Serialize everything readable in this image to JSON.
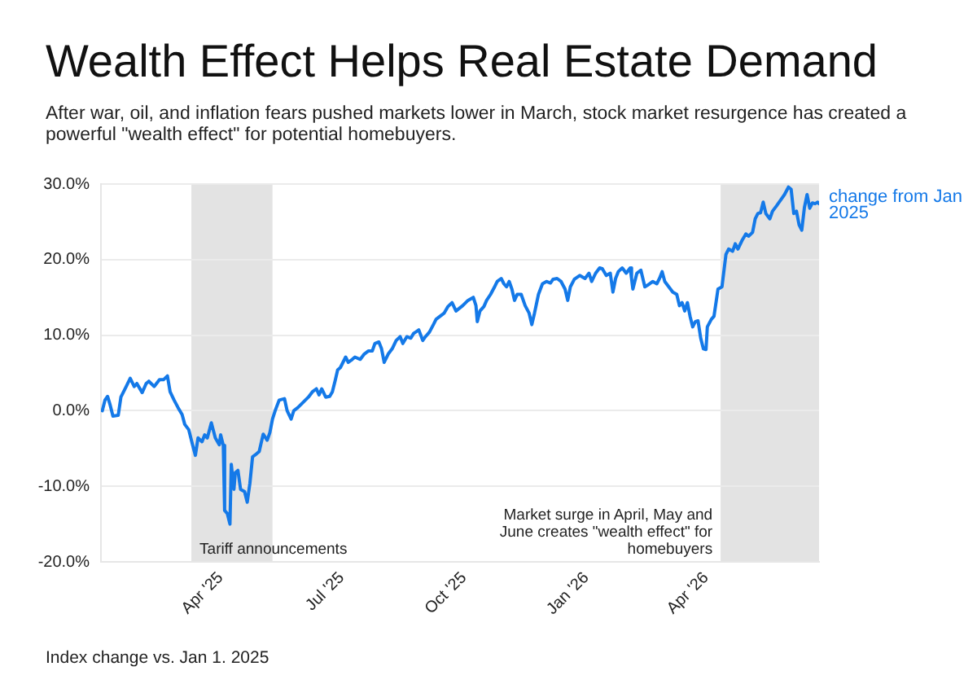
{
  "chart_data": {
    "type": "line",
    "title": "Wealth Effect Helps Real Estate Demand",
    "subtitle": "After war, oil, and inflation fears pushed markets lower in March, stock market resurgence has created a powerful \"wealth effect\" for potential homebuyers.",
    "x": [
      "2025-01-02",
      "2025-01-04",
      "2025-01-06",
      "2025-01-08",
      "2025-01-10",
      "2025-01-14",
      "2025-01-16",
      "2025-01-20",
      "2025-01-23",
      "2025-01-26",
      "2025-01-28",
      "2025-02-01",
      "2025-02-04",
      "2025-02-06",
      "2025-02-10",
      "2025-02-14",
      "2025-02-17",
      "2025-02-20",
      "2025-02-22",
      "2025-02-25",
      "2025-02-28",
      "2025-03-03",
      "2025-03-05",
      "2025-03-08",
      "2025-03-11",
      "2025-03-13",
      "2025-03-15",
      "2025-03-18",
      "2025-03-20",
      "2025-03-22",
      "2025-03-25",
      "2025-03-28",
      "2025-03-31",
      "2025-04-01",
      "2025-04-03",
      "2025-04-04",
      "2025-04-06",
      "2025-04-08",
      "2025-04-09",
      "2025-04-11",
      "2025-04-12",
      "2025-04-14",
      "2025-04-16",
      "2025-04-19",
      "2025-04-21",
      "2025-04-23",
      "2025-04-25",
      "2025-04-28",
      "2025-04-30",
      "2025-05-03",
      "2025-05-06",
      "2025-05-08",
      "2025-05-10",
      "2025-05-12",
      "2025-05-15",
      "2025-05-19",
      "2025-05-21",
      "2025-05-24",
      "2025-05-26",
      "2025-05-29",
      "2025-06-02",
      "2025-06-06",
      "2025-06-09",
      "2025-06-12",
      "2025-06-14",
      "2025-06-16",
      "2025-06-19",
      "2025-06-22",
      "2025-06-24",
      "2025-06-26",
      "2025-06-28",
      "2025-06-30",
      "2025-07-04",
      "2025-07-06",
      "2025-07-09",
      "2025-07-11",
      "2025-07-15",
      "2025-07-18",
      "2025-07-21",
      "2025-07-24",
      "2025-07-26",
      "2025-07-29",
      "2025-07-31",
      "2025-08-02",
      "2025-08-05",
      "2025-08-08",
      "2025-08-11",
      "2025-08-14",
      "2025-08-16",
      "2025-08-19",
      "2025-08-22",
      "2025-08-24",
      "2025-08-28",
      "2025-08-31",
      "2025-09-02",
      "2025-09-05",
      "2025-09-08",
      "2025-09-10",
      "2025-09-13",
      "2025-09-16",
      "2025-09-19",
      "2025-09-22",
      "2025-09-25",
      "2025-09-30",
      "2025-10-04",
      "2025-10-08",
      "2025-10-10",
      "2025-10-11",
      "2025-10-13",
      "2025-10-16",
      "2025-10-18",
      "2025-10-21",
      "2025-10-24",
      "2025-10-26",
      "2025-10-29",
      "2025-10-31",
      "2025-11-02",
      "2025-11-04",
      "2025-11-06",
      "2025-11-08",
      "2025-11-10",
      "2025-11-13",
      "2025-11-16",
      "2025-11-19",
      "2025-11-21",
      "2025-11-23",
      "2025-11-26",
      "2025-11-29",
      "2025-12-02",
      "2025-12-05",
      "2025-12-07",
      "2025-12-10",
      "2025-12-13",
      "2025-12-16",
      "2025-12-18",
      "2025-12-20",
      "2025-12-23",
      "2025-12-27",
      "2025-12-31",
      "2026-01-03",
      "2026-01-05",
      "2026-01-08",
      "2026-01-11",
      "2026-01-13",
      "2026-01-16",
      "2026-01-19",
      "2026-01-21",
      "2026-01-23",
      "2026-01-25",
      "2026-01-28",
      "2026-01-31",
      "2026-02-03",
      "2026-02-04",
      "2026-02-05",
      "2026-02-08",
      "2026-02-11",
      "2026-02-14",
      "2026-02-16",
      "2026-02-20",
      "2026-02-23",
      "2026-02-25",
      "2026-02-27",
      "2026-03-01",
      "2026-03-04",
      "2026-03-07",
      "2026-03-10",
      "2026-03-12",
      "2026-03-14",
      "2026-03-16",
      "2026-03-18",
      "2026-03-20",
      "2026-03-22",
      "2026-03-24",
      "2026-03-26",
      "2026-03-28",
      "2026-03-30",
      "2026-04-01",
      "2026-04-02",
      "2026-04-05",
      "2026-04-07",
      "2026-04-10",
      "2026-04-13",
      "2026-04-16",
      "2026-04-18",
      "2026-04-21",
      "2026-04-23",
      "2026-04-25",
      "2026-04-28",
      "2026-05-01",
      "2026-05-03",
      "2026-05-06",
      "2026-05-08",
      "2026-05-10",
      "2026-05-12",
      "2026-05-14",
      "2026-05-16",
      "2026-05-19",
      "2026-05-21",
      "2026-05-24",
      "2026-05-28",
      "2026-05-30",
      "2026-06-02",
      "2026-06-04",
      "2026-06-06",
      "2026-06-08",
      "2026-06-10",
      "2026-06-12",
      "2026-06-14",
      "2026-06-16",
      "2026-06-18",
      "2026-06-20",
      "2026-06-22",
      "2026-06-24",
      "2026-06-25"
    ],
    "series": [
      {
        "name": "change from Jan 2025",
        "color": "#1479e8",
        "values": [
          0.0,
          1.4,
          1.9,
          0.7,
          -0.7,
          -0.6,
          1.8,
          3.2,
          4.3,
          3.2,
          3.6,
          2.4,
          3.6,
          3.9,
          3.2,
          4.1,
          4.1,
          4.6,
          2.5,
          1.4,
          0.4,
          -0.5,
          -1.8,
          -2.5,
          -4.6,
          -5.9,
          -3.6,
          -4.1,
          -3.2,
          -3.6,
          -1.6,
          -3.6,
          -4.5,
          -3.2,
          -4.6,
          -13.2,
          -13.6,
          -15.0,
          -7.1,
          -10.4,
          -8.2,
          -7.9,
          -10.4,
          -10.7,
          -12.1,
          -9.6,
          -6.1,
          -5.7,
          -5.4,
          -3.1,
          -3.9,
          -2.9,
          -1.1,
          0.0,
          1.4,
          1.6,
          0.0,
          -1.1,
          0.0,
          0.4,
          1.1,
          1.8,
          2.5,
          2.9,
          2.1,
          2.9,
          1.8,
          1.9,
          2.5,
          3.9,
          5.4,
          5.7,
          7.1,
          6.4,
          6.8,
          7.1,
          6.8,
          7.5,
          7.9,
          7.9,
          8.9,
          9.1,
          8.2,
          6.4,
          7.5,
          8.2,
          9.3,
          9.8,
          8.9,
          9.8,
          9.6,
          10.2,
          10.7,
          9.3,
          9.8,
          10.4,
          11.4,
          12.1,
          12.5,
          12.9,
          13.8,
          14.3,
          13.2,
          13.9,
          14.6,
          15.0,
          13.9,
          11.8,
          13.2,
          13.8,
          14.6,
          15.4,
          16.4,
          17.1,
          17.5,
          16.8,
          16.4,
          17.1,
          16.1,
          14.6,
          15.4,
          15.4,
          13.9,
          12.9,
          11.4,
          12.9,
          15.4,
          16.8,
          17.1,
          16.9,
          17.4,
          17.5,
          17.1,
          16.1,
          14.6,
          16.4,
          17.4,
          17.9,
          17.5,
          18.2,
          17.1,
          18.2,
          18.9,
          18.8,
          17.9,
          18.2,
          15.7,
          17.5,
          18.4,
          18.9,
          18.2,
          18.9,
          17.5,
          16.1,
          18.2,
          18.6,
          16.4,
          16.6,
          17.1,
          16.8,
          17.5,
          18.4,
          17.1,
          16.4,
          15.7,
          15.4,
          13.9,
          14.3,
          13.2,
          14.3,
          12.5,
          11.1,
          11.8,
          11.9,
          9.6,
          8.2,
          8.1,
          11.1,
          12.1,
          12.5,
          16.1,
          16.4,
          20.7,
          21.4,
          21.1,
          22.1,
          21.4,
          22.5,
          23.4,
          23.1,
          23.6,
          25.4,
          26.1,
          26.2,
          27.6,
          26.1,
          25.4,
          26.4,
          27.1,
          28.1,
          28.6,
          29.6,
          29.3,
          26.1,
          26.4,
          24.6,
          23.9,
          26.9,
          28.6,
          26.8,
          27.5,
          27.4,
          27.6,
          27.4
        ]
      }
    ],
    "xlim": [
      "2025-01-01",
      "2026-06-25"
    ],
    "xticks": [
      {
        "value": "2025-04-01",
        "label": "Apr '25"
      },
      {
        "value": "2025-07-01",
        "label": "Jul '25"
      },
      {
        "value": "2025-10-01",
        "label": "Oct '25"
      },
      {
        "value": "2026-01-01",
        "label": "Jan '26"
      },
      {
        "value": "2026-04-01",
        "label": "Apr '26"
      }
    ],
    "ylim": [
      -20,
      30
    ],
    "yticks": [
      {
        "value": -20,
        "label": "-20.0%"
      },
      {
        "value": -10,
        "label": "-10.0%"
      },
      {
        "value": 0,
        "label": "0.0%"
      },
      {
        "value": 10,
        "label": "10.0%"
      },
      {
        "value": 20,
        "label": "20.0%"
      },
      {
        "value": 30,
        "label": "30.0%"
      }
    ],
    "bands": [
      {
        "axis": "x",
        "from": "2025-03-10",
        "to": "2025-05-10",
        "label": "Tariff announcements",
        "color": "#e3e3e3"
      },
      {
        "axis": "x",
        "from": "2026-04-12",
        "to": "2026-06-25",
        "label": "Market surge in April, May and June creates \"wealth effect\" for homebuyers",
        "color": "#e3e3e3"
      }
    ],
    "annotations": [
      "Index change vs. Jan 1. 2025"
    ],
    "grid": "y",
    "legend": false,
    "marker": "none"
  }
}
